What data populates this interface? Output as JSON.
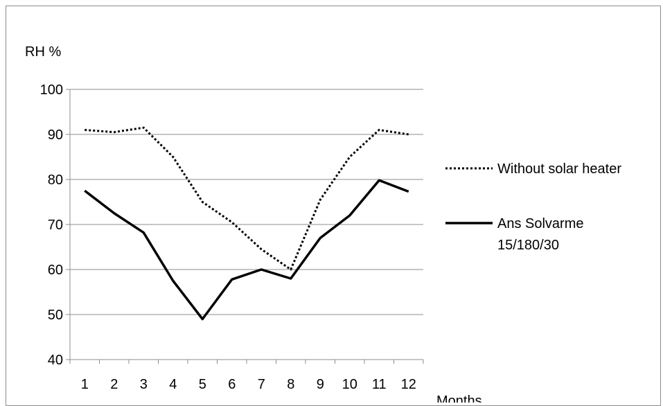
{
  "chart_data": {
    "type": "line",
    "title": "",
    "ylabel": "RH %",
    "xlabel": "Months",
    "categories": [
      "1",
      "2",
      "3",
      "4",
      "5",
      "6",
      "7",
      "8",
      "9",
      "10",
      "11",
      "12"
    ],
    "ylim": [
      40,
      100
    ],
    "yticks": [
      40,
      50,
      60,
      70,
      80,
      90,
      100
    ],
    "grid": true,
    "legend_position": "right",
    "series": [
      {
        "name": "Without solar heater",
        "style": "dotted",
        "color": "#000000",
        "values": [
          91,
          90.5,
          91.5,
          85,
          75,
          70.5,
          64.5,
          60,
          75.5,
          85,
          91,
          90
        ]
      },
      {
        "name": "Ans Solvarme\n15/180/30",
        "name_lines": [
          "Ans Solvarme",
          "15/180/30"
        ],
        "style": "solid",
        "color": "#000000",
        "values": [
          77.5,
          72.5,
          68.2,
          57.5,
          49,
          57.8,
          60,
          58,
          67,
          72,
          79.8,
          77.3
        ]
      }
    ]
  }
}
